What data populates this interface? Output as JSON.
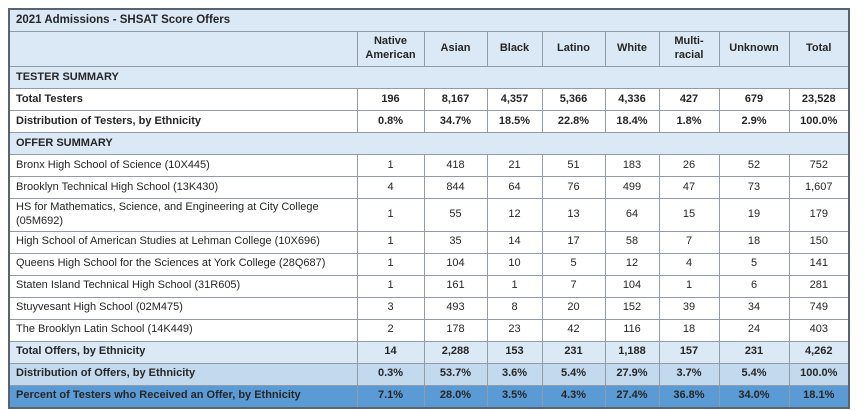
{
  "title": "2021 Admissions - SHSAT Score Offers",
  "colors": {
    "header_fill": "#dbe8f5",
    "distribution_offers_fill": "#c3d9ee",
    "percent_offer_fill": "#5b9bd5",
    "inner_border": "#929ca6",
    "outer_border": "#596470",
    "text": "#262626"
  },
  "columns": [
    "Native American",
    "Asian",
    "Black",
    "Latino",
    "White",
    "Multi-racial",
    "Unknown",
    "Total"
  ],
  "rows": [
    {
      "kind": "section",
      "style": "section",
      "label": "TESTER SUMMARY",
      "values": []
    },
    {
      "kind": "data",
      "style": "bold",
      "label": "Total Testers",
      "values": [
        "196",
        "8,167",
        "4,357",
        "5,366",
        "4,336",
        "427",
        "679",
        "23,528"
      ]
    },
    {
      "kind": "data",
      "style": "bold",
      "label": "Distribution of Testers, by Ethnicity",
      "values": [
        "0.8%",
        "34.7%",
        "18.5%",
        "22.8%",
        "18.4%",
        "1.8%",
        "2.9%",
        "100.0%"
      ]
    },
    {
      "kind": "section",
      "style": "section",
      "label": "OFFER SUMMARY",
      "values": []
    },
    {
      "kind": "data",
      "style": "plain",
      "label": "Bronx High School of Science (10X445)",
      "values": [
        "1",
        "418",
        "21",
        "51",
        "183",
        "26",
        "52",
        "752"
      ]
    },
    {
      "kind": "data",
      "style": "plain",
      "label": "Brooklyn Technical High School (13K430)",
      "values": [
        "4",
        "844",
        "64",
        "76",
        "499",
        "47",
        "73",
        "1,607"
      ]
    },
    {
      "kind": "data",
      "style": "plain",
      "label": "HS for Mathematics, Science, and Engineering at City College (05M692)",
      "values": [
        "1",
        "55",
        "12",
        "13",
        "64",
        "15",
        "19",
        "179"
      ]
    },
    {
      "kind": "data",
      "style": "plain",
      "label": "High School of American Studies at Lehman College (10X696)",
      "values": [
        "1",
        "35",
        "14",
        "17",
        "58",
        "7",
        "18",
        "150"
      ]
    },
    {
      "kind": "data",
      "style": "plain",
      "label": "Queens High School for the Sciences at York College (28Q687)",
      "values": [
        "1",
        "104",
        "10",
        "5",
        "12",
        "4",
        "5",
        "141"
      ]
    },
    {
      "kind": "data",
      "style": "plain",
      "label": "Staten Island Technical High School (31R605)",
      "values": [
        "1",
        "161",
        "1",
        "7",
        "104",
        "1",
        "6",
        "281"
      ]
    },
    {
      "kind": "data",
      "style": "plain",
      "label": "Stuyvesant High School (02M475)",
      "values": [
        "3",
        "493",
        "8",
        "20",
        "152",
        "39",
        "34",
        "749"
      ]
    },
    {
      "kind": "data",
      "style": "plain",
      "label": "The Brooklyn Latin School (14K449)",
      "values": [
        "2",
        "178",
        "23",
        "42",
        "116",
        "18",
        "24",
        "403"
      ]
    },
    {
      "kind": "data",
      "style": "highlight-light",
      "label": "Total Offers, by Ethnicity",
      "values": [
        "14",
        "2,288",
        "153",
        "231",
        "1,188",
        "157",
        "231",
        "4,262"
      ]
    },
    {
      "kind": "data",
      "style": "highlight-mid",
      "label": "Distribution of Offers, by Ethnicity",
      "values": [
        "0.3%",
        "53.7%",
        "3.6%",
        "5.4%",
        "27.9%",
        "3.7%",
        "5.4%",
        "100.0%"
      ]
    },
    {
      "kind": "data",
      "style": "highlight-strong",
      "label": "Percent of Testers who Received an Offer, by Ethnicity",
      "values": [
        "7.1%",
        "28.0%",
        "3.5%",
        "4.3%",
        "27.4%",
        "36.8%",
        "34.0%",
        "18.1%"
      ]
    }
  ],
  "chart_data": {
    "type": "table",
    "title": "2021 Admissions - SHSAT Score Offers",
    "columns": [
      "Native American",
      "Asian",
      "Black",
      "Latino",
      "White",
      "Multi-racial",
      "Unknown",
      "Total"
    ],
    "sections": [
      {
        "name": "TESTER SUMMARY",
        "rows": [
          {
            "label": "Total Testers",
            "values": [
              196,
              8167,
              4357,
              5366,
              4336,
              427,
              679,
              23528
            ]
          },
          {
            "label": "Distribution of Testers, by Ethnicity",
            "values": [
              "0.8%",
              "34.7%",
              "18.5%",
              "22.8%",
              "18.4%",
              "1.8%",
              "2.9%",
              "100.0%"
            ]
          }
        ]
      },
      {
        "name": "OFFER SUMMARY",
        "rows": [
          {
            "label": "Bronx High School of Science (10X445)",
            "values": [
              1,
              418,
              21,
              51,
              183,
              26,
              52,
              752
            ]
          },
          {
            "label": "Brooklyn Technical High School (13K430)",
            "values": [
              4,
              844,
              64,
              76,
              499,
              47,
              73,
              1607
            ]
          },
          {
            "label": "HS for Mathematics, Science, and Engineering at City College (05M692)",
            "values": [
              1,
              55,
              12,
              13,
              64,
              15,
              19,
              179
            ]
          },
          {
            "label": "High School of American Studies at Lehman College (10X696)",
            "values": [
              1,
              35,
              14,
              17,
              58,
              7,
              18,
              150
            ]
          },
          {
            "label": "Queens High School for the Sciences at York College (28Q687)",
            "values": [
              1,
              104,
              10,
              5,
              12,
              4,
              5,
              141
            ]
          },
          {
            "label": "Staten Island Technical High School (31R605)",
            "values": [
              1,
              161,
              1,
              7,
              104,
              1,
              6,
              281
            ]
          },
          {
            "label": "Stuyvesant High School (02M475)",
            "values": [
              3,
              493,
              8,
              20,
              152,
              39,
              34,
              749
            ]
          },
          {
            "label": "The Brooklyn Latin School (14K449)",
            "values": [
              2,
              178,
              23,
              42,
              116,
              18,
              24,
              403
            ]
          },
          {
            "label": "Total Offers, by Ethnicity",
            "values": [
              14,
              2288,
              153,
              231,
              1188,
              157,
              231,
              4262
            ]
          },
          {
            "label": "Distribution of Offers, by Ethnicity",
            "values": [
              "0.3%",
              "53.7%",
              "3.6%",
              "5.4%",
              "27.9%",
              "3.7%",
              "5.4%",
              "100.0%"
            ]
          },
          {
            "label": "Percent of Testers who Received an Offer, by Ethnicity",
            "values": [
              "7.1%",
              "28.0%",
              "3.5%",
              "4.3%",
              "27.4%",
              "36.8%",
              "34.0%",
              "18.1%"
            ]
          }
        ]
      }
    ]
  }
}
